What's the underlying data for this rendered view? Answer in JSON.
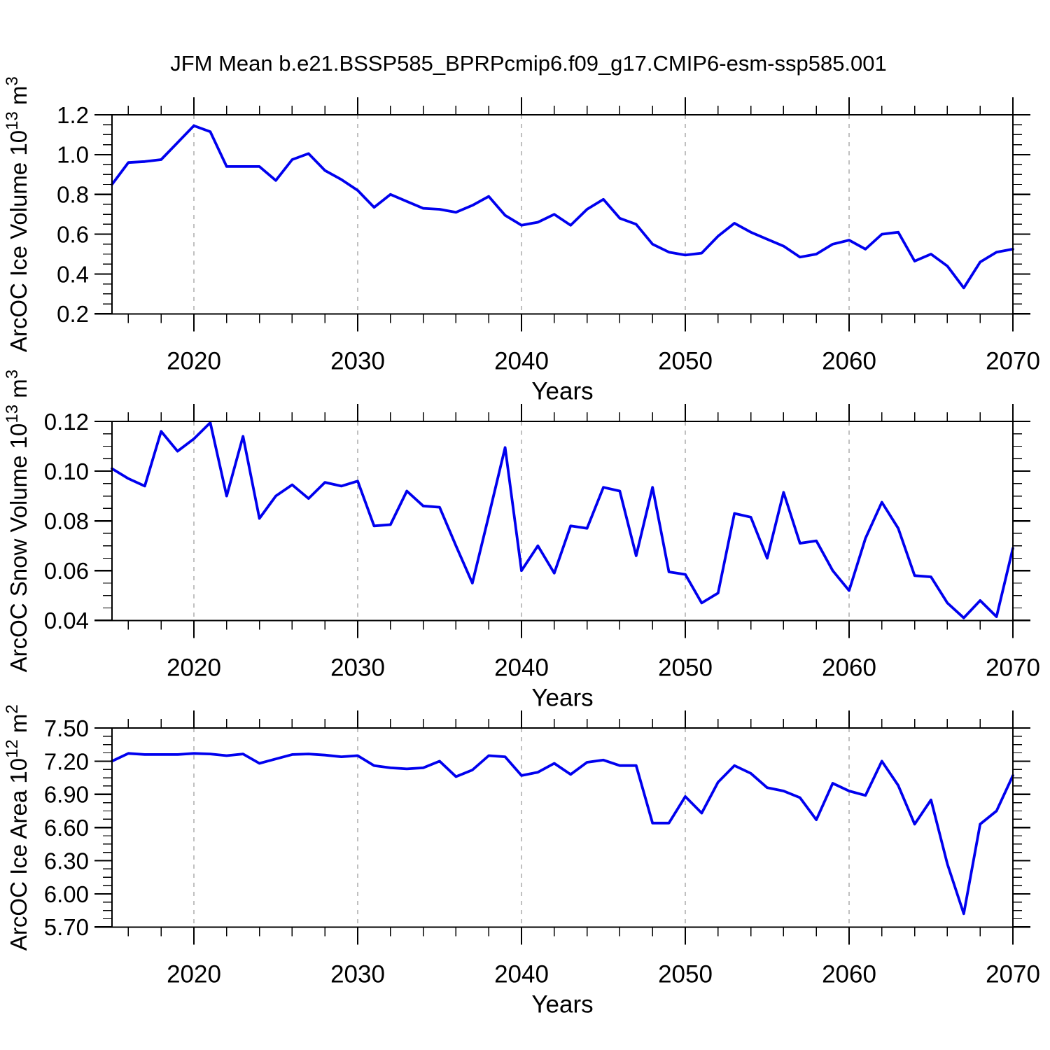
{
  "title": "JFM Mean b.e21.BSSP585_BPRPcmip6.f09_g17.CMIP6-esm-ssp585.001",
  "colors": {
    "line": "#0000EE",
    "axis": "#000000",
    "grid": "#808080",
    "background": "#FFFFFF",
    "text": "#000000"
  },
  "chart_data": {
    "type": "line",
    "title": "JFM Mean b.e21.BSSP585_BPRPcmip6.f09_g17.CMIP6-esm-ssp585.001",
    "xlabel": "Years",
    "x_range": [
      2015,
      2070
    ],
    "x_major_ticks": [
      2020,
      2030,
      2040,
      2050,
      2060,
      2070
    ],
    "x_major_tick_labels": [
      "2020",
      "2030",
      "2040",
      "2050",
      "2060",
      "2070"
    ],
    "x_minor_step": 2,
    "x_gridline_years": [
      2020,
      2030,
      2040,
      2050,
      2060
    ],
    "grid_style": "dashed-vertical-only",
    "legend": "none",
    "years": [
      2015,
      2016,
      2017,
      2018,
      2019,
      2020,
      2021,
      2022,
      2023,
      2024,
      2025,
      2026,
      2027,
      2028,
      2029,
      2030,
      2031,
      2032,
      2033,
      2034,
      2035,
      2036,
      2037,
      2038,
      2039,
      2040,
      2041,
      2042,
      2043,
      2044,
      2045,
      2046,
      2047,
      2048,
      2049,
      2050,
      2051,
      2052,
      2053,
      2054,
      2055,
      2056,
      2057,
      2058,
      2059,
      2060,
      2061,
      2062,
      2063,
      2064,
      2065,
      2066,
      2067,
      2068,
      2069,
      2070
    ],
    "panels": [
      {
        "name": "ice-volume",
        "ylabel": "ArcOC Ice Volume 10^13 m^3",
        "ylabel_parts": [
          {
            "t": "ArcOC Ice Volume 10"
          },
          {
            "t": "13",
            "sup": true
          },
          {
            "t": " m"
          },
          {
            "t": "3",
            "sup": true
          }
        ],
        "ylim": [
          0.2,
          1.2
        ],
        "y_major_ticks": [
          0.2,
          0.4,
          0.6,
          0.8,
          1.0,
          1.2
        ],
        "y_major_tick_labels": [
          "0.2",
          "0.4",
          "0.6",
          "0.8",
          "1.0",
          "1.2"
        ],
        "y_minor_step": 0.05,
        "values": [
          0.85,
          0.96,
          0.965,
          0.975,
          1.06,
          1.145,
          1.115,
          0.94,
          0.94,
          0.94,
          0.87,
          0.975,
          1.005,
          0.92,
          0.875,
          0.82,
          0.735,
          0.8,
          0.765,
          0.73,
          0.725,
          0.71,
          0.745,
          0.79,
          0.695,
          0.645,
          0.66,
          0.7,
          0.645,
          0.725,
          0.775,
          0.68,
          0.65,
          0.55,
          0.51,
          0.495,
          0.505,
          0.59,
          0.655,
          0.61,
          0.575,
          0.54,
          0.485,
          0.5,
          0.55,
          0.57,
          0.525,
          0.6,
          0.61,
          0.465,
          0.5,
          0.44,
          0.33,
          0.46,
          0.51,
          0.525
        ]
      },
      {
        "name": "snow-volume",
        "ylabel": "ArcOC Snow Volume 10^13 m^3",
        "ylabel_parts": [
          {
            "t": "ArcOC Snow Volume 10"
          },
          {
            "t": "13",
            "sup": true
          },
          {
            "t": " m"
          },
          {
            "t": "3",
            "sup": true
          }
        ],
        "ylim": [
          0.04,
          0.12
        ],
        "y_major_ticks": [
          0.04,
          0.06,
          0.08,
          0.1,
          0.12
        ],
        "y_major_tick_labels": [
          "0.04",
          "0.06",
          "0.08",
          "0.10",
          "0.12"
        ],
        "y_minor_step": 0.005,
        "values": [
          0.101,
          0.097,
          0.094,
          0.116,
          0.108,
          0.113,
          0.1195,
          0.09,
          0.114,
          0.081,
          0.09,
          0.0945,
          0.089,
          0.0955,
          0.094,
          0.096,
          0.078,
          0.0785,
          0.092,
          0.086,
          0.0855,
          0.07,
          0.055,
          0.082,
          0.1095,
          0.06,
          0.07,
          0.059,
          0.078,
          0.077,
          0.0935,
          0.092,
          0.066,
          0.0935,
          0.0595,
          0.0585,
          0.047,
          0.051,
          0.083,
          0.0815,
          0.065,
          0.0915,
          0.071,
          0.072,
          0.06,
          0.052,
          0.073,
          0.0875,
          0.077,
          0.058,
          0.0575,
          0.047,
          0.041,
          0.048,
          0.0415,
          0.069
        ]
      },
      {
        "name": "ice-area",
        "ylabel": "ArcOC Ice Area 10^12 m^2",
        "ylabel_parts": [
          {
            "t": "ArcOC Ice Area 10"
          },
          {
            "t": "12",
            "sup": true
          },
          {
            "t": " m"
          },
          {
            "t": "2",
            "sup": true
          }
        ],
        "ylim": [
          5.7,
          7.5
        ],
        "y_major_ticks": [
          5.7,
          6.0,
          6.3,
          6.6,
          6.9,
          7.2,
          7.5
        ],
        "y_major_tick_labels": [
          "5.70",
          "6.00",
          "6.30",
          "6.60",
          "6.90",
          "7.20",
          "7.50"
        ],
        "y_minor_step": 0.075,
        "values": [
          7.2,
          7.27,
          7.26,
          7.26,
          7.26,
          7.27,
          7.265,
          7.25,
          7.265,
          7.18,
          7.22,
          7.26,
          7.265,
          7.255,
          7.24,
          7.25,
          7.16,
          7.14,
          7.13,
          7.14,
          7.2,
          7.06,
          7.12,
          7.25,
          7.24,
          7.07,
          7.1,
          7.18,
          7.08,
          7.19,
          7.21,
          7.16,
          7.16,
          6.64,
          6.64,
          6.88,
          6.73,
          7.01,
          7.16,
          7.09,
          6.96,
          6.93,
          6.87,
          6.67,
          7.0,
          6.93,
          6.89,
          7.2,
          6.98,
          6.63,
          6.85,
          6.27,
          5.82,
          6.63,
          6.75,
          7.07
        ]
      }
    ]
  }
}
